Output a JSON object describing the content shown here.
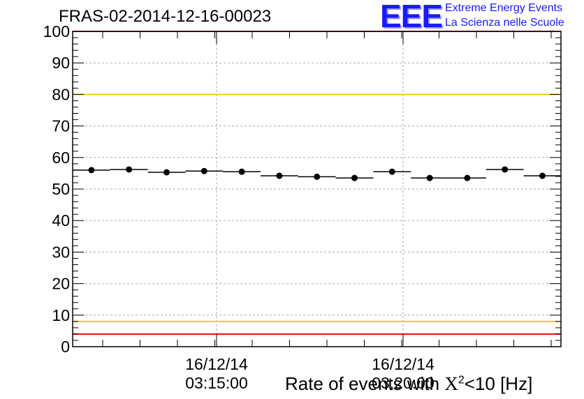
{
  "chart_data": {
    "type": "scatter",
    "title": "FRAS-02-2014-12-16-00023",
    "xlabel_prefix": "Rate of events with ",
    "xlabel_symbol": "X",
    "xlabel_sup": "2",
    "xlabel_suffix": "<10 [Hz]",
    "ylim": [
      0,
      100
    ],
    "yticks": [
      "0",
      "10",
      "20",
      "30",
      "40",
      "50",
      "60",
      "70",
      "80",
      "90",
      "100"
    ],
    "xtick_labels": [
      {
        "date": "16/12/14",
        "time": "03:15:00"
      },
      {
        "date": "16/12/14",
        "time": "03:20:00"
      }
    ],
    "grid": true,
    "points": [
      {
        "x": 1,
        "y": 56.0
      },
      {
        "x": 2,
        "y": 56.2
      },
      {
        "x": 3,
        "y": 55.3
      },
      {
        "x": 4,
        "y": 55.7
      },
      {
        "x": 5,
        "y": 55.5
      },
      {
        "x": 6,
        "y": 54.2
      },
      {
        "x": 7,
        "y": 53.9
      },
      {
        "x": 8,
        "y": 53.5
      },
      {
        "x": 9,
        "y": 55.5
      },
      {
        "x": 10,
        "y": 53.5
      },
      {
        "x": 11,
        "y": 53.5
      },
      {
        "x": 12,
        "y": 56.2
      },
      {
        "x": 13,
        "y": 54.2
      }
    ],
    "reference_lines": [
      {
        "y": 100,
        "color": "#ff0000"
      },
      {
        "y": 80,
        "color": "#f0d000"
      },
      {
        "y": 8,
        "color": "#f0d000"
      },
      {
        "y": 4,
        "color": "#ff0000"
      }
    ]
  },
  "logo": {
    "mark": "EEE",
    "line1": "Extreme Energy Events",
    "line2": "La Scienza nelle Scuole"
  }
}
